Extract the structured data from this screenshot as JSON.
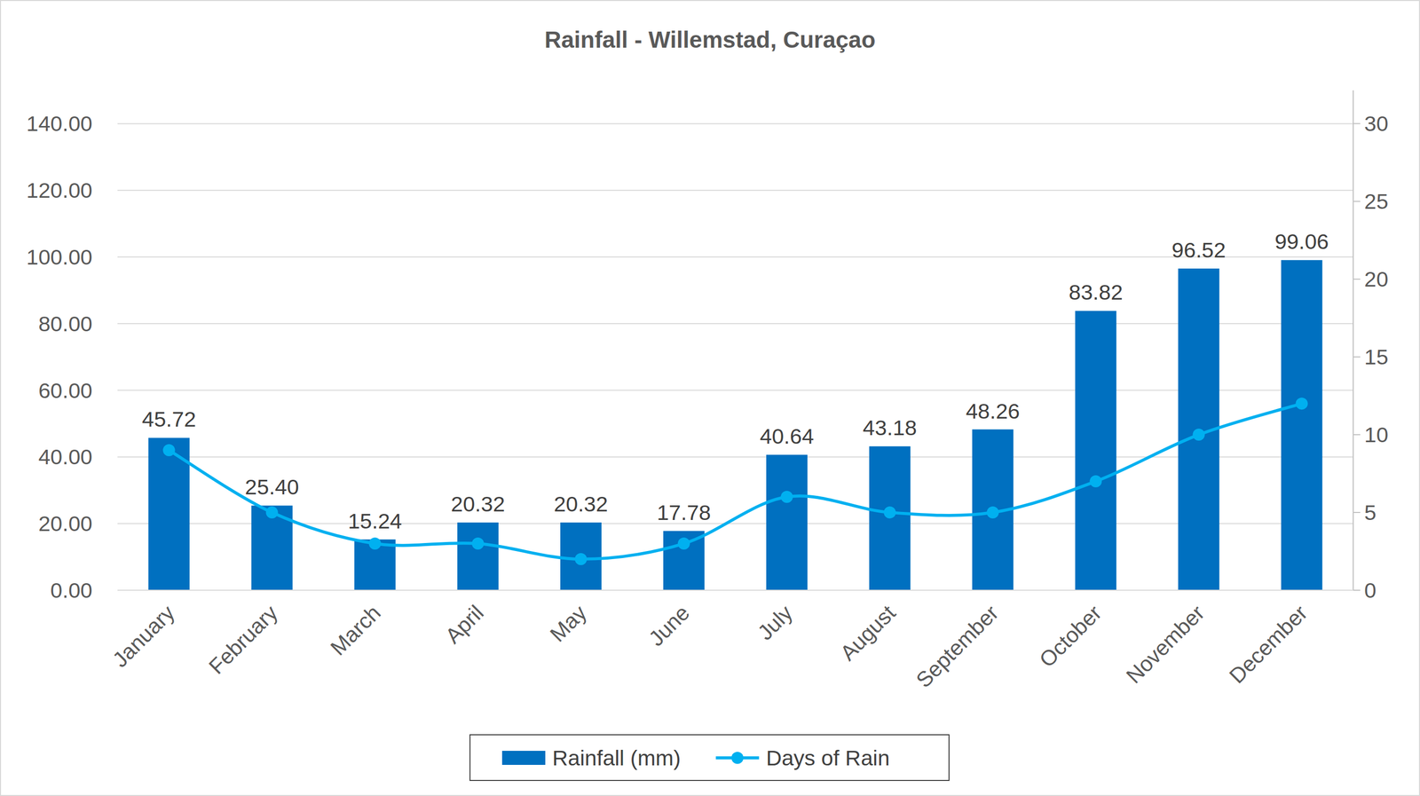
{
  "chart_data": {
    "type": "bar",
    "title": "Rainfall - Willemstad, Curaçao",
    "categories": [
      "January",
      "February",
      "March",
      "April",
      "May",
      "June",
      "July",
      "August",
      "September",
      "October",
      "November",
      "December"
    ],
    "series": [
      {
        "name": "Rainfall (mm)",
        "type": "bar",
        "color": "#0070c0",
        "data_labels": true,
        "values": [
          45.72,
          25.4,
          15.24,
          20.32,
          20.32,
          17.78,
          40.64,
          43.18,
          48.26,
          83.82,
          96.52,
          99.06
        ],
        "value_labels": [
          "45.72",
          "25.40",
          "15.24",
          "20.32",
          "20.32",
          "17.78",
          "40.64",
          "43.18",
          "48.26",
          "83.82",
          "96.52",
          "99.06"
        ]
      },
      {
        "name": "Days of Rain",
        "type": "line",
        "color": "#00b0f0",
        "axis": "y2",
        "marker": "circle",
        "line_style": "smooth",
        "values": [
          9,
          5,
          3,
          3,
          2,
          3,
          6,
          5,
          5,
          7,
          10,
          12
        ]
      }
    ],
    "ylim": [
      0,
      150
    ],
    "yticks": [
      {
        "value": 0,
        "label": "0.00"
      },
      {
        "value": 20,
        "label": "20.00"
      },
      {
        "value": 40,
        "label": "40.00"
      },
      {
        "value": 60,
        "label": "60.00"
      },
      {
        "value": 80,
        "label": "80.00"
      },
      {
        "value": 100,
        "label": "100.00"
      },
      {
        "value": 120,
        "label": "120.00"
      },
      {
        "value": 140,
        "label": "140.00"
      }
    ],
    "y2lim": [
      0,
      32.14
    ],
    "y2ticks": [
      0,
      5,
      10,
      15,
      20,
      25,
      30
    ],
    "grid": true,
    "legend": "bottom"
  }
}
